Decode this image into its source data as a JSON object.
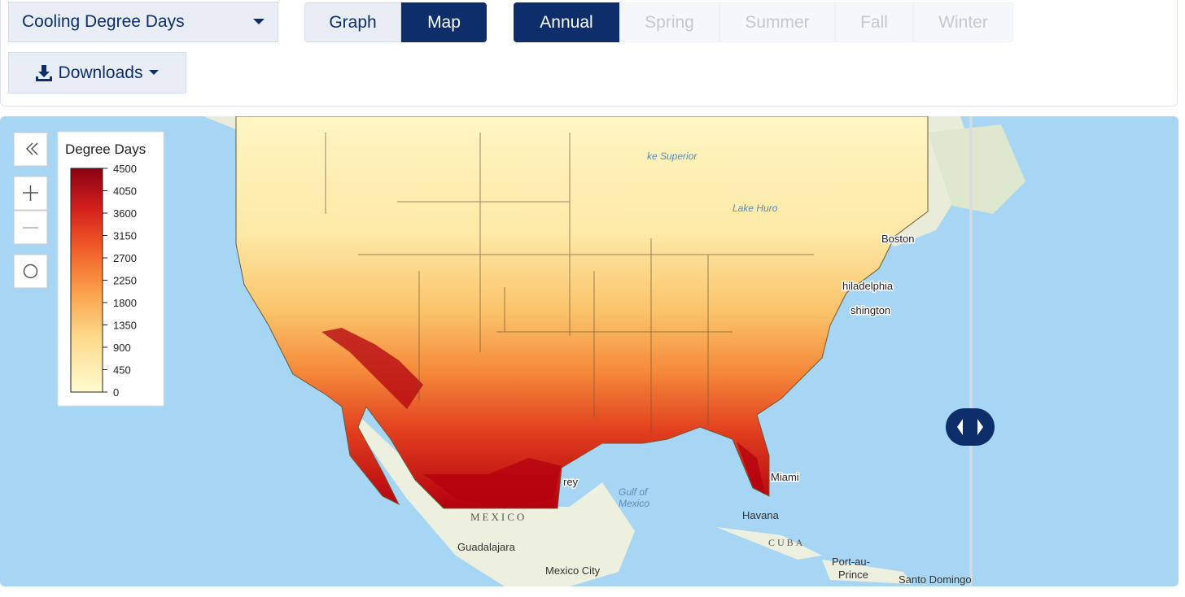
{
  "toolbar": {
    "variable": "Cooling Degree Days",
    "views": [
      "Graph",
      "Map"
    ],
    "active_view": "Map",
    "seasons": [
      "Annual",
      "Spring",
      "Summer",
      "Fall",
      "Winter"
    ],
    "active_season": "Annual",
    "downloads": "Downloads"
  },
  "legend": {
    "title": "Degree Days",
    "range": [
      0,
      4500
    ],
    "ticks": [
      0,
      450,
      900,
      1350,
      1800,
      2250,
      2700,
      3150,
      3600,
      4050,
      4500
    ]
  },
  "map_labels": {
    "lake_superior": "ke Superior",
    "lake_huron": "Lake Huro",
    "boston": "Boston",
    "philadelphia": "hiladelphia",
    "washington": "shington",
    "miami": "Miami",
    "monterrey": "rey",
    "gulf": "Gulf of",
    "gulf2": "Mexico",
    "mexico": "MEXICO",
    "havana": "Havana",
    "cuba": "CUBA",
    "guadalajara": "Guadalajara",
    "mexico_city": "Mexico City",
    "port_au_prince": "Port-au-",
    "port_au_prince2": "Prince",
    "santo_domingo": "Santo Domingo"
  }
}
